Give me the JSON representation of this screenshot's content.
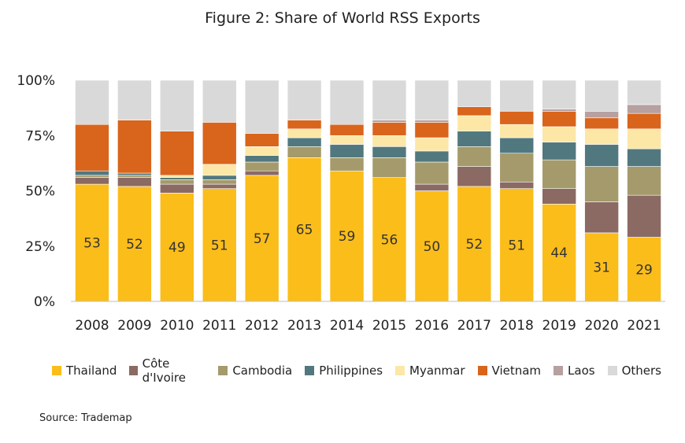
{
  "chart_data": {
    "type": "bar",
    "stacked": true,
    "title": "Figure 2: Share of World RSS Exports",
    "categories": [
      "2008",
      "2009",
      "2010",
      "2011",
      "2012",
      "2013",
      "2014",
      "2015",
      "2016",
      "2017",
      "2018",
      "2019",
      "2020",
      "2021"
    ],
    "ylim": [
      0,
      100
    ],
    "yticks": [
      "0%",
      "25%",
      "50%",
      "75%",
      "100%"
    ],
    "ytick_values": [
      0,
      25,
      50,
      75,
      100
    ],
    "grid": false,
    "legend_position": "bottom",
    "series": [
      {
        "name": "Thailand",
        "color": "#FBBD1A",
        "values": [
          53,
          52,
          49,
          51,
          57,
          65,
          59,
          56,
          50,
          52,
          51,
          44,
          31,
          29
        ],
        "show_labels": true
      },
      {
        "name": "Côte d'Ivoire",
        "color": "#8B6A64",
        "values": [
          3,
          4,
          4,
          2,
          2,
          0,
          0,
          0,
          3,
          9,
          3,
          7,
          14,
          19
        ]
      },
      {
        "name": "Cambodia",
        "color": "#A49A6B",
        "values": [
          1,
          1,
          2,
          2,
          4,
          5,
          6,
          9,
          10,
          9,
          13,
          13,
          16,
          13
        ]
      },
      {
        "name": "Philippines",
        "color": "#52787F",
        "values": [
          2,
          1,
          1,
          2,
          3,
          4,
          6,
          5,
          5,
          7,
          7,
          8,
          10,
          8
        ]
      },
      {
        "name": "Myanmar",
        "color": "#FCE7A6",
        "values": [
          0,
          0,
          1,
          5,
          4,
          4,
          4,
          5,
          6,
          7,
          6,
          7,
          7,
          9
        ]
      },
      {
        "name": "Vietnam",
        "color": "#D9641B",
        "values": [
          21,
          24,
          20,
          19,
          6,
          4,
          5,
          6,
          7,
          4,
          6,
          7,
          5,
          7
        ]
      },
      {
        "name": "Laos",
        "color": "#B7A0A0",
        "values": [
          0,
          0,
          0,
          0,
          0,
          0,
          0,
          1,
          1,
          0,
          0,
          1,
          3,
          4
        ]
      },
      {
        "name": "Others",
        "color": "#D9D9D9",
        "values": [
          20,
          18,
          23,
          19,
          24,
          18,
          20,
          18,
          18,
          12,
          14,
          13,
          14,
          11
        ]
      }
    ],
    "source": "Source: Trademap"
  }
}
